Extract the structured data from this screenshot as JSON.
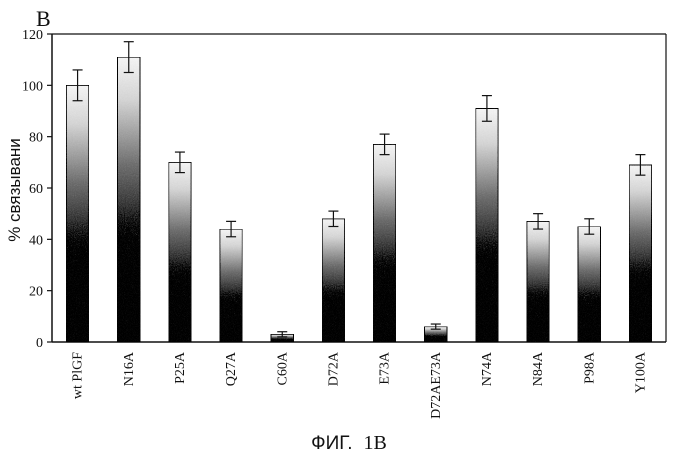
{
  "panel_label": "B",
  "caption": {
    "prefix": "ФИГ.",
    "figure_id": "1B"
  },
  "chart_data": {
    "type": "bar",
    "title": "",
    "xlabel": "",
    "ylabel": "% связывани",
    "ylim": [
      0,
      120
    ],
    "yticks": [
      0,
      20,
      40,
      60,
      80,
      100,
      120
    ],
    "grid": false,
    "categories": [
      "wt PlGF",
      "N16A",
      "P25A",
      "Q27A",
      "C60A",
      "D72A",
      "E73A",
      "D72AE73A",
      "N74A",
      "N84A",
      "P98A",
      "Y100A"
    ],
    "values": [
      100,
      111,
      70,
      44,
      3,
      48,
      77,
      6,
      91,
      47,
      45,
      69
    ],
    "errors": [
      6,
      6,
      4,
      3,
      1,
      3,
      4,
      1,
      5,
      3,
      3,
      4
    ]
  },
  "colors": {
    "bar_dark": "#1a1a1a",
    "bar_light": "#f7f7f7",
    "axis": "#111111"
  }
}
